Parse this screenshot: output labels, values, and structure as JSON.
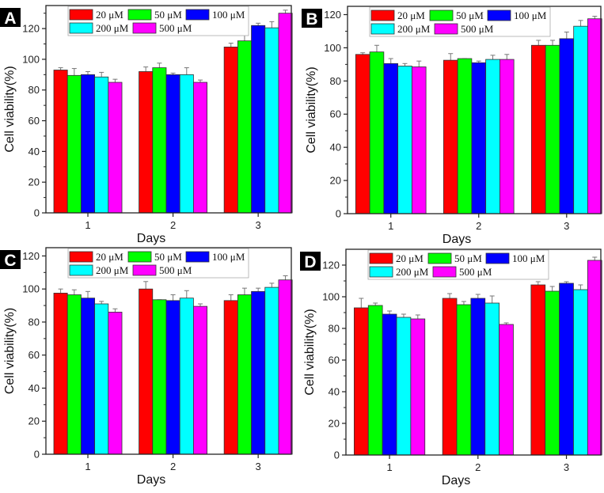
{
  "chart_data": [
    {
      "type": "bar",
      "panel_label": "A",
      "xlabel": "Days",
      "ylabel": "Cell viability(%)",
      "categories": [
        "1",
        "2",
        "3"
      ],
      "ylim": [
        0,
        135
      ],
      "yticks": [
        "0",
        "20",
        "40",
        "60",
        "80",
        "100",
        "120"
      ],
      "series": [
        {
          "name": "20 μM",
          "color": "#ff0000",
          "values": [
            93,
            92,
            108
          ],
          "errors": [
            1.5,
            3,
            2.5
          ]
        },
        {
          "name": "50 μM",
          "color": "#00ff00",
          "values": [
            89.5,
            94.5,
            112
          ],
          "errors": [
            4.5,
            3,
            4
          ]
        },
        {
          "name": "100 μM",
          "color": "#0000ff",
          "values": [
            90,
            90,
            122
          ],
          "errors": [
            2,
            1,
            1.5
          ]
        },
        {
          "name": "200 μM",
          "color": "#00ffff",
          "values": [
            88.5,
            90,
            120.5
          ],
          "errors": [
            3,
            4.5,
            4
          ]
        },
        {
          "name": "500 μM",
          "color": "#ff00ff",
          "values": [
            85,
            85,
            130
          ],
          "errors": [
            2,
            1.5,
            2
          ]
        }
      ]
    },
    {
      "type": "bar",
      "panel_label": "B",
      "xlabel": "Days",
      "ylabel": "Cell viability(%)",
      "categories": [
        "1",
        "2",
        "3"
      ],
      "ylim": [
        0,
        125
      ],
      "yticks": [
        "0",
        "20",
        "40",
        "60",
        "80",
        "100",
        "120"
      ],
      "series": [
        {
          "name": "20 μM",
          "color": "#ff0000",
          "values": [
            96,
            92.5,
            101.5
          ],
          "errors": [
            1,
            4,
            3
          ]
        },
        {
          "name": "50 μM",
          "color": "#00ff00",
          "values": [
            97.5,
            93.5,
            101.5
          ],
          "errors": [
            4,
            0,
            3
          ]
        },
        {
          "name": "100 μM",
          "color": "#0000ff",
          "values": [
            90.5,
            91,
            105.5
          ],
          "errors": [
            3,
            1,
            4
          ]
        },
        {
          "name": "200 μM",
          "color": "#00ffff",
          "values": [
            89,
            93,
            113
          ],
          "errors": [
            1.5,
            2.5,
            3.5
          ]
        },
        {
          "name": "500 μM",
          "color": "#ff00ff",
          "values": [
            88.5,
            93,
            117.5
          ],
          "errors": [
            3.5,
            3,
            1.5
          ]
        }
      ]
    },
    {
      "type": "bar",
      "panel_label": "C",
      "xlabel": "Days",
      "ylabel": "Cell viability(%)",
      "categories": [
        "1",
        "2",
        "3"
      ],
      "ylim": [
        0,
        125
      ],
      "yticks": [
        "0",
        "20",
        "40",
        "60",
        "80",
        "100",
        "120"
      ],
      "series": [
        {
          "name": "20 μM",
          "color": "#ff0000",
          "values": [
            97.5,
            100,
            93
          ],
          "errors": [
            2.5,
            4.5,
            3.5
          ]
        },
        {
          "name": "50 μM",
          "color": "#00ff00",
          "values": [
            96.5,
            93.5,
            96.5
          ],
          "errors": [
            3,
            0,
            4
          ]
        },
        {
          "name": "100 μM",
          "color": "#0000ff",
          "values": [
            94.5,
            93,
            98.5
          ],
          "errors": [
            4,
            3.5,
            2
          ]
        },
        {
          "name": "200 μM",
          "color": "#00ffff",
          "values": [
            91,
            94.5,
            101
          ],
          "errors": [
            1.5,
            4.5,
            2.5
          ]
        },
        {
          "name": "500 μM",
          "color": "#ff00ff",
          "values": [
            86,
            89.5,
            105.5
          ],
          "errors": [
            2,
            1.5,
            2.5
          ]
        }
      ]
    },
    {
      "type": "bar",
      "panel_label": "D",
      "xlabel": "Days",
      "ylabel": "Cell viability(%)",
      "categories": [
        "1",
        "2",
        "3"
      ],
      "ylim": [
        0,
        130
      ],
      "yticks": [
        "0",
        "20",
        "40",
        "60",
        "80",
        "100",
        "120"
      ],
      "series": [
        {
          "name": "20 μM",
          "color": "#ff0000",
          "values": [
            93,
            99,
            107.5
          ],
          "errors": [
            6,
            3,
            2
          ]
        },
        {
          "name": "50 μM",
          "color": "#00ff00",
          "values": [
            94.5,
            95,
            103.5
          ],
          "errors": [
            1.5,
            2,
            3
          ]
        },
        {
          "name": "100 μM",
          "color": "#0000ff",
          "values": [
            89,
            99,
            108.5
          ],
          "errors": [
            2,
            2.5,
            1
          ]
        },
        {
          "name": "200 μM",
          "color": "#00ffff",
          "values": [
            87,
            96,
            104.5
          ],
          "errors": [
            2,
            4.5,
            3
          ]
        },
        {
          "name": "500 μM",
          "color": "#ff00ff",
          "values": [
            86,
            82.5,
            123
          ],
          "errors": [
            2.5,
            1,
            2
          ]
        }
      ]
    }
  ]
}
